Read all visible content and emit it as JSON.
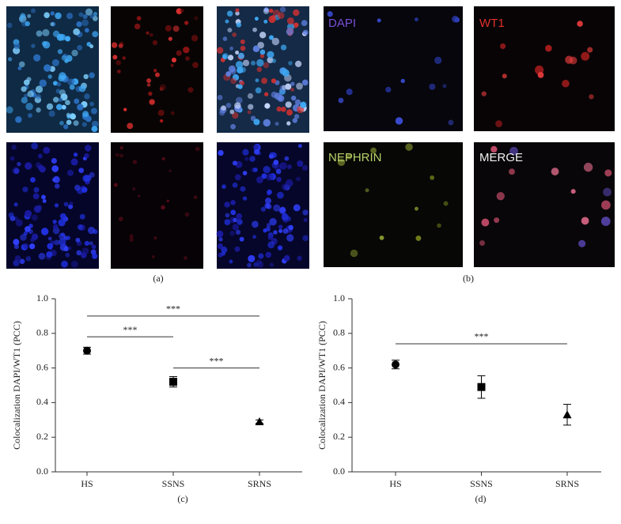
{
  "panel_a": {
    "caption": "(a)"
  },
  "panel_b": {
    "caption": "(b)",
    "labels": [
      "DAPI",
      "WT1",
      "NEPHRIN",
      "MERGE"
    ]
  },
  "chart_data": [
    {
      "type": "scatter",
      "caption": "(c)",
      "y_label": "Colocalization DAPI/WT1 (PCC)",
      "categories": [
        "HS",
        "SSNS",
        "SRNS"
      ],
      "values": [
        0.7,
        0.52,
        0.29
      ],
      "errors": [
        0.02,
        0.03,
        0.01
      ],
      "markers": [
        "circle",
        "square",
        "triangle"
      ],
      "color": "#000000",
      "ylim": [
        0,
        1
      ],
      "yticks": [
        {
          "value": 0,
          "label": "0.0"
        },
        {
          "value": 0.2,
          "label": "0.2"
        },
        {
          "value": 0.4,
          "label": "0.4"
        },
        {
          "value": 0.6,
          "label": "0.6"
        },
        {
          "value": 0.8,
          "label": "0.8"
        },
        {
          "value": 1,
          "label": "1.0"
        }
      ],
      "annotations": [
        {
          "text": "***",
          "from": 0,
          "to": 1,
          "y": 0.78
        },
        {
          "text": "***",
          "from": 1,
          "to": 2,
          "y": 0.6
        },
        {
          "text": "***",
          "from": 0,
          "to": 2,
          "y": 0.9
        }
      ]
    },
    {
      "type": "scatter",
      "caption": "(d)",
      "y_label": "Colocalization DAPI/WT1 (PCC)",
      "categories": [
        "HS",
        "SSNS",
        "SRNS"
      ],
      "values": [
        0.62,
        0.49,
        0.33
      ],
      "errors": [
        0.025,
        0.065,
        0.06
      ],
      "markers": [
        "circle",
        "square",
        "triangle"
      ],
      "color": "#000000",
      "ylim": [
        0,
        1
      ],
      "yticks": [
        {
          "value": 0,
          "label": "0.0"
        },
        {
          "value": 0.2,
          "label": "0.2"
        },
        {
          "value": 0.4,
          "label": "0.4"
        },
        {
          "value": 0.6,
          "label": "0.6"
        },
        {
          "value": 0.8,
          "label": "0.8"
        },
        {
          "value": 1,
          "label": "1.0"
        }
      ],
      "annotations": [
        {
          "text": "***",
          "from": 0,
          "to": 2,
          "y": 0.74
        }
      ]
    }
  ]
}
